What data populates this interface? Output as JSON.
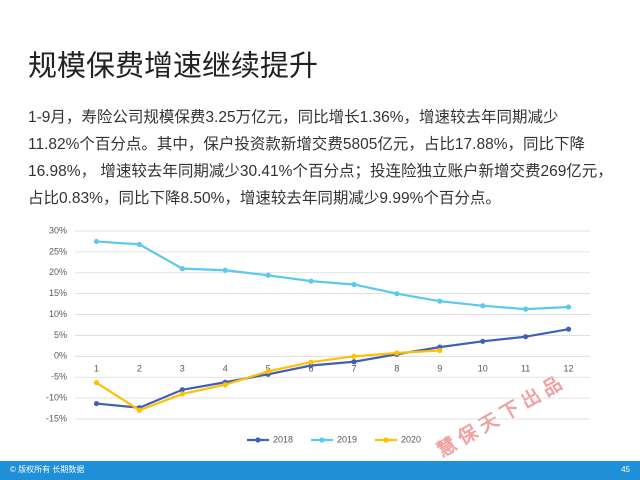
{
  "title": "规模保费增速继续提升",
  "paragraph": [
    "1-9月，寿险公司规模保费3.25万亿元，同比增长1.36%，增速较去年同期减少",
    "11.82%个百分点。其中，保户投资款新增交费5805亿元，占比17.88%，同比下降",
    "16.98%， 增速较去年同期减少30.41%个百分点；投连险独立账户新增交费269亿元，",
    "占比0.83%，同比下降8.50%，增速较去年同期减少9.99%个百分点。"
  ],
  "watermark": "慧 保 天 下 出 品",
  "footer": {
    "left": "© 版权所有 长期数据",
    "page": "45"
  },
  "chart_data": {
    "type": "line",
    "categories": [
      1,
      2,
      3,
      4,
      5,
      6,
      7,
      8,
      9,
      10,
      11,
      12
    ],
    "series": [
      {
        "name": "2018",
        "color": "#4060b8",
        "values": [
          -11.3,
          -12.3,
          -8.0,
          -6.2,
          -4.3,
          -2.2,
          -1.3,
          0.5,
          2.2,
          3.6,
          4.7,
          6.5
        ]
      },
      {
        "name": "2019",
        "color": "#5bc8ef",
        "values": [
          27.5,
          26.8,
          21.0,
          20.6,
          19.4,
          18.0,
          17.2,
          15.0,
          13.2,
          12.1,
          11.3,
          11.8
        ]
      },
      {
        "name": "2020",
        "color": "#ffc000",
        "values": [
          -6.3,
          -12.9,
          -9.0,
          -6.8,
          -3.6,
          -1.4,
          0.0,
          0.8,
          1.4,
          null,
          null,
          null
        ]
      }
    ],
    "ylim": [
      -15,
      30
    ],
    "yticks": [
      {
        "value": -15,
        "label": "-15%"
      },
      {
        "value": -10,
        "label": "-10%"
      },
      {
        "value": -5,
        "label": "-5%"
      },
      {
        "value": 0,
        "label": "0%"
      },
      {
        "value": 5,
        "label": "5%"
      },
      {
        "value": 10,
        "label": "10%"
      },
      {
        "value": 15,
        "label": "15%"
      },
      {
        "value": 20,
        "label": "20%"
      },
      {
        "value": 25,
        "label": "25%"
      },
      {
        "value": 30,
        "label": "30%"
      }
    ],
    "grid": true,
    "legend": "bottom"
  }
}
